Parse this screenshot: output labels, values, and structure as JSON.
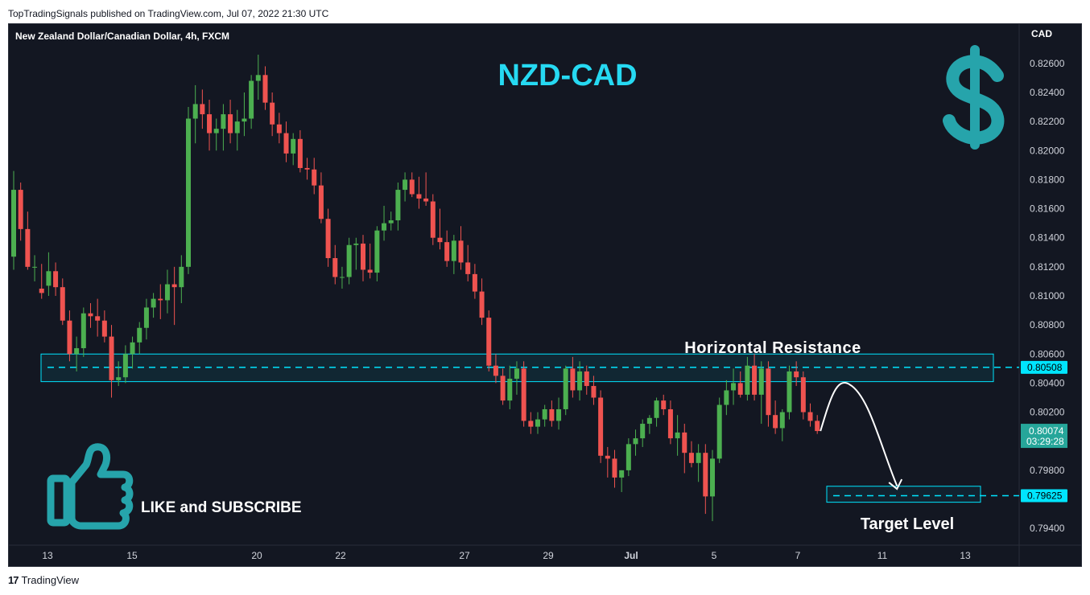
{
  "header": {
    "published": "TopTradingSignals published on TradingView.com, Jul 07, 2022 21:30 UTC"
  },
  "footer": {
    "brand": "TradingView",
    "brand_mark": "17"
  },
  "symbol_line": "New Zealand Dollar/Canadian Dollar, 4h, FXCM",
  "overlay": {
    "title": "NZD-CAD",
    "resistance_label": "Horizontal Resistance",
    "target_label": "Target Level",
    "like_text": "LIKE and SUBSCRIBE",
    "currency_icon": "dollar-icon",
    "thumb_icon": "thumbs-up-icon"
  },
  "colors": {
    "background": "#131722",
    "up": "#26a69a",
    "up_body": "#4caf50",
    "down": "#ef5350",
    "accent_cyan": "#00e5ff",
    "title_cyan": "#26d9f2",
    "teal_icon": "#26a4ab",
    "axis_text": "#d1d4dc",
    "current_price_bg": "#26a69a"
  },
  "price_axis": {
    "unit": "CAD",
    "ticks": [
      "0.82600",
      "0.82400",
      "0.82200",
      "0.82000",
      "0.81800",
      "0.81600",
      "0.81400",
      "0.81200",
      "0.81000",
      "0.80800",
      "0.80600",
      "0.80400",
      "0.80200",
      "0.79800",
      "0.79400"
    ],
    "resistance_tag": "0.80508",
    "target_tag": "0.79625",
    "current_price": "0.80074",
    "countdown": "03:29:28"
  },
  "time_axis": {
    "labels": [
      "13",
      "15",
      "20",
      "22",
      "27",
      "29",
      "Jul",
      "5",
      "7",
      "11",
      "13"
    ]
  },
  "chart_data": {
    "type": "candlestick",
    "timeframe": "4h",
    "ylim": [
      0.7935,
      0.8268
    ],
    "resistance_level": 0.80508,
    "resistance_zone": [
      0.8041,
      0.806
    ],
    "target_level": 0.79625,
    "target_zone": [
      0.7958,
      0.7969
    ],
    "candles": [
      {
        "o": 0.8127,
        "h": 0.8186,
        "l": 0.8118,
        "c": 0.8173
      },
      {
        "o": 0.8173,
        "h": 0.8178,
        "l": 0.8138,
        "c": 0.8146
      },
      {
        "o": 0.8146,
        "h": 0.8158,
        "l": 0.8118,
        "c": 0.812
      },
      {
        "o": 0.812,
        "h": 0.8128,
        "l": 0.811,
        "c": 0.812
      },
      {
        "o": 0.8105,
        "h": 0.8122,
        "l": 0.8098,
        "c": 0.8102
      },
      {
        "o": 0.8107,
        "h": 0.813,
        "l": 0.81,
        "c": 0.8117
      },
      {
        "o": 0.8117,
        "h": 0.8123,
        "l": 0.81,
        "c": 0.8106
      },
      {
        "o": 0.8106,
        "h": 0.8112,
        "l": 0.808,
        "c": 0.8083
      },
      {
        "o": 0.8083,
        "h": 0.809,
        "l": 0.8055,
        "c": 0.806
      },
      {
        "o": 0.806,
        "h": 0.8072,
        "l": 0.8048,
        "c": 0.8064
      },
      {
        "o": 0.8064,
        "h": 0.8092,
        "l": 0.8058,
        "c": 0.8088
      },
      {
        "o": 0.8088,
        "h": 0.8095,
        "l": 0.8078,
        "c": 0.8086
      },
      {
        "o": 0.8086,
        "h": 0.8098,
        "l": 0.8072,
        "c": 0.8083
      },
      {
        "o": 0.8083,
        "h": 0.809,
        "l": 0.8068,
        "c": 0.8072
      },
      {
        "o": 0.8072,
        "h": 0.808,
        "l": 0.803,
        "c": 0.8042
      },
      {
        "o": 0.8042,
        "h": 0.8055,
        "l": 0.8038,
        "c": 0.8044
      },
      {
        "o": 0.8044,
        "h": 0.8066,
        "l": 0.804,
        "c": 0.806
      },
      {
        "o": 0.806,
        "h": 0.8072,
        "l": 0.805,
        "c": 0.8068
      },
      {
        "o": 0.8068,
        "h": 0.8082,
        "l": 0.806,
        "c": 0.8078
      },
      {
        "o": 0.8078,
        "h": 0.8098,
        "l": 0.807,
        "c": 0.8092
      },
      {
        "o": 0.8092,
        "h": 0.8102,
        "l": 0.8085,
        "c": 0.8098
      },
      {
        "o": 0.8098,
        "h": 0.8108,
        "l": 0.8084,
        "c": 0.8097
      },
      {
        "o": 0.8097,
        "h": 0.8118,
        "l": 0.8088,
        "c": 0.8108
      },
      {
        "o": 0.8108,
        "h": 0.812,
        "l": 0.808,
        "c": 0.8106
      },
      {
        "o": 0.8106,
        "h": 0.8128,
        "l": 0.8095,
        "c": 0.812
      },
      {
        "o": 0.812,
        "h": 0.823,
        "l": 0.8115,
        "c": 0.8222
      },
      {
        "o": 0.8222,
        "h": 0.8245,
        "l": 0.8205,
        "c": 0.8232
      },
      {
        "o": 0.8232,
        "h": 0.8242,
        "l": 0.8215,
        "c": 0.8225
      },
      {
        "o": 0.8225,
        "h": 0.8235,
        "l": 0.82,
        "c": 0.8212
      },
      {
        "o": 0.8212,
        "h": 0.8222,
        "l": 0.82,
        "c": 0.8215
      },
      {
        "o": 0.8215,
        "h": 0.8232,
        "l": 0.82,
        "c": 0.8225
      },
      {
        "o": 0.8225,
        "h": 0.8235,
        "l": 0.8205,
        "c": 0.8212
      },
      {
        "o": 0.8212,
        "h": 0.8228,
        "l": 0.82,
        "c": 0.822
      },
      {
        "o": 0.822,
        "h": 0.824,
        "l": 0.821,
        "c": 0.8222
      },
      {
        "o": 0.8222,
        "h": 0.8252,
        "l": 0.8215,
        "c": 0.8248
      },
      {
        "o": 0.8248,
        "h": 0.8266,
        "l": 0.8235,
        "c": 0.8252
      },
      {
        "o": 0.8252,
        "h": 0.8258,
        "l": 0.8228,
        "c": 0.8233
      },
      {
        "o": 0.8233,
        "h": 0.824,
        "l": 0.821,
        "c": 0.8218
      },
      {
        "o": 0.8218,
        "h": 0.8226,
        "l": 0.8205,
        "c": 0.8212
      },
      {
        "o": 0.8212,
        "h": 0.822,
        "l": 0.8192,
        "c": 0.8198
      },
      {
        "o": 0.8198,
        "h": 0.8212,
        "l": 0.819,
        "c": 0.8208
      },
      {
        "o": 0.8208,
        "h": 0.8214,
        "l": 0.8185,
        "c": 0.8188
      },
      {
        "o": 0.8188,
        "h": 0.8195,
        "l": 0.818,
        "c": 0.8187
      },
      {
        "o": 0.8187,
        "h": 0.8195,
        "l": 0.817,
        "c": 0.8176
      },
      {
        "o": 0.8176,
        "h": 0.8185,
        "l": 0.815,
        "c": 0.8153
      },
      {
        "o": 0.8153,
        "h": 0.816,
        "l": 0.812,
        "c": 0.8126
      },
      {
        "o": 0.8126,
        "h": 0.8135,
        "l": 0.8108,
        "c": 0.8113
      },
      {
        "o": 0.8113,
        "h": 0.812,
        "l": 0.8105,
        "c": 0.8113
      },
      {
        "o": 0.8113,
        "h": 0.814,
        "l": 0.8108,
        "c": 0.8135
      },
      {
        "o": 0.8135,
        "h": 0.814,
        "l": 0.8118,
        "c": 0.8136
      },
      {
        "o": 0.8136,
        "h": 0.8142,
        "l": 0.811,
        "c": 0.8118
      },
      {
        "o": 0.8118,
        "h": 0.8136,
        "l": 0.8112,
        "c": 0.8116
      },
      {
        "o": 0.8116,
        "h": 0.8148,
        "l": 0.811,
        "c": 0.8145
      },
      {
        "o": 0.8145,
        "h": 0.8162,
        "l": 0.8138,
        "c": 0.815
      },
      {
        "o": 0.815,
        "h": 0.8158,
        "l": 0.8145,
        "c": 0.8152
      },
      {
        "o": 0.8152,
        "h": 0.8178,
        "l": 0.8145,
        "c": 0.8173
      },
      {
        "o": 0.8173,
        "h": 0.8185,
        "l": 0.8165,
        "c": 0.818
      },
      {
        "o": 0.818,
        "h": 0.8185,
        "l": 0.8168,
        "c": 0.817
      },
      {
        "o": 0.817,
        "h": 0.8182,
        "l": 0.816,
        "c": 0.8167
      },
      {
        "o": 0.8167,
        "h": 0.8185,
        "l": 0.8162,
        "c": 0.8165
      },
      {
        "o": 0.8165,
        "h": 0.817,
        "l": 0.8135,
        "c": 0.814
      },
      {
        "o": 0.814,
        "h": 0.816,
        "l": 0.8132,
        "c": 0.8137
      },
      {
        "o": 0.8137,
        "h": 0.8145,
        "l": 0.812,
        "c": 0.8124
      },
      {
        "o": 0.8124,
        "h": 0.8142,
        "l": 0.8115,
        "c": 0.8138
      },
      {
        "o": 0.8138,
        "h": 0.8148,
        "l": 0.8118,
        "c": 0.8123
      },
      {
        "o": 0.8123,
        "h": 0.8135,
        "l": 0.811,
        "c": 0.8115
      },
      {
        "o": 0.8115,
        "h": 0.8122,
        "l": 0.8098,
        "c": 0.8103
      },
      {
        "o": 0.8103,
        "h": 0.8112,
        "l": 0.808,
        "c": 0.8085
      },
      {
        "o": 0.8085,
        "h": 0.809,
        "l": 0.8048,
        "c": 0.8052
      },
      {
        "o": 0.8052,
        "h": 0.806,
        "l": 0.804,
        "c": 0.8045
      },
      {
        "o": 0.8045,
        "h": 0.805,
        "l": 0.8025,
        "c": 0.8028
      },
      {
        "o": 0.8028,
        "h": 0.8052,
        "l": 0.8022,
        "c": 0.8043
      },
      {
        "o": 0.8043,
        "h": 0.8055,
        "l": 0.8032,
        "c": 0.805
      },
      {
        "o": 0.805,
        "h": 0.8055,
        "l": 0.801,
        "c": 0.8014
      },
      {
        "o": 0.8014,
        "h": 0.802,
        "l": 0.8005,
        "c": 0.801
      },
      {
        "o": 0.801,
        "h": 0.802,
        "l": 0.8005,
        "c": 0.8015
      },
      {
        "o": 0.8015,
        "h": 0.8025,
        "l": 0.801,
        "c": 0.8022
      },
      {
        "o": 0.8022,
        "h": 0.8028,
        "l": 0.801,
        "c": 0.8014
      },
      {
        "o": 0.8014,
        "h": 0.803,
        "l": 0.8008,
        "c": 0.8022
      },
      {
        "o": 0.8022,
        "h": 0.8052,
        "l": 0.8018,
        "c": 0.805
      },
      {
        "o": 0.805,
        "h": 0.8058,
        "l": 0.803,
        "c": 0.8035
      },
      {
        "o": 0.8035,
        "h": 0.8055,
        "l": 0.8028,
        "c": 0.8048
      },
      {
        "o": 0.8048,
        "h": 0.8052,
        "l": 0.8032,
        "c": 0.8038
      },
      {
        "o": 0.8038,
        "h": 0.8045,
        "l": 0.8025,
        "c": 0.803
      },
      {
        "o": 0.803,
        "h": 0.8035,
        "l": 0.7985,
        "c": 0.799
      },
      {
        "o": 0.799,
        "h": 0.7996,
        "l": 0.7975,
        "c": 0.7988
      },
      {
        "o": 0.7988,
        "h": 0.7994,
        "l": 0.7968,
        "c": 0.7975
      },
      {
        "o": 0.7975,
        "h": 0.798,
        "l": 0.7965,
        "c": 0.798
      },
      {
        "o": 0.798,
        "h": 0.8002,
        "l": 0.7976,
        "c": 0.7998
      },
      {
        "o": 0.7998,
        "h": 0.8008,
        "l": 0.799,
        "c": 0.8002
      },
      {
        "o": 0.8002,
        "h": 0.8015,
        "l": 0.7996,
        "c": 0.8012
      },
      {
        "o": 0.8012,
        "h": 0.8018,
        "l": 0.8005,
        "c": 0.8016
      },
      {
        "o": 0.8016,
        "h": 0.803,
        "l": 0.801,
        "c": 0.8028
      },
      {
        "o": 0.8028,
        "h": 0.8032,
        "l": 0.8018,
        "c": 0.8022
      },
      {
        "o": 0.8022,
        "h": 0.8028,
        "l": 0.7998,
        "c": 0.8002
      },
      {
        "o": 0.8002,
        "h": 0.8018,
        "l": 0.799,
        "c": 0.8006
      },
      {
        "o": 0.8006,
        "h": 0.8012,
        "l": 0.7978,
        "c": 0.7992
      },
      {
        "o": 0.7992,
        "h": 0.8,
        "l": 0.7982,
        "c": 0.7985
      },
      {
        "o": 0.7985,
        "h": 0.7998,
        "l": 0.7972,
        "c": 0.7992
      },
      {
        "o": 0.7992,
        "h": 0.7998,
        "l": 0.795,
        "c": 0.7962
      },
      {
        "o": 0.7962,
        "h": 0.7994,
        "l": 0.7945,
        "c": 0.7988
      },
      {
        "o": 0.7988,
        "h": 0.803,
        "l": 0.7985,
        "c": 0.8025
      },
      {
        "o": 0.8025,
        "h": 0.8042,
        "l": 0.8018,
        "c": 0.8035
      },
      {
        "o": 0.8035,
        "h": 0.805,
        "l": 0.8025,
        "c": 0.804
      },
      {
        "o": 0.804,
        "h": 0.8048,
        "l": 0.803,
        "c": 0.8032
      },
      {
        "o": 0.8032,
        "h": 0.8058,
        "l": 0.8028,
        "c": 0.8052
      },
      {
        "o": 0.8052,
        "h": 0.806,
        "l": 0.8028,
        "c": 0.8032
      },
      {
        "o": 0.8032,
        "h": 0.8055,
        "l": 0.8012,
        "c": 0.805
      },
      {
        "o": 0.805,
        "h": 0.8055,
        "l": 0.801,
        "c": 0.8018
      },
      {
        "o": 0.8018,
        "h": 0.8028,
        "l": 0.8005,
        "c": 0.8009
      },
      {
        "o": 0.8009,
        "h": 0.8022,
        "l": 0.8,
        "c": 0.802
      },
      {
        "o": 0.802,
        "h": 0.8052,
        "l": 0.8015,
        "c": 0.8048
      },
      {
        "o": 0.8048,
        "h": 0.8055,
        "l": 0.8038,
        "c": 0.8044
      },
      {
        "o": 0.8044,
        "h": 0.8048,
        "l": 0.8015,
        "c": 0.802
      },
      {
        "o": 0.802,
        "h": 0.8026,
        "l": 0.801,
        "c": 0.8014
      },
      {
        "o": 0.8014,
        "h": 0.8018,
        "l": 0.8005,
        "c": 0.8007
      }
    ]
  }
}
